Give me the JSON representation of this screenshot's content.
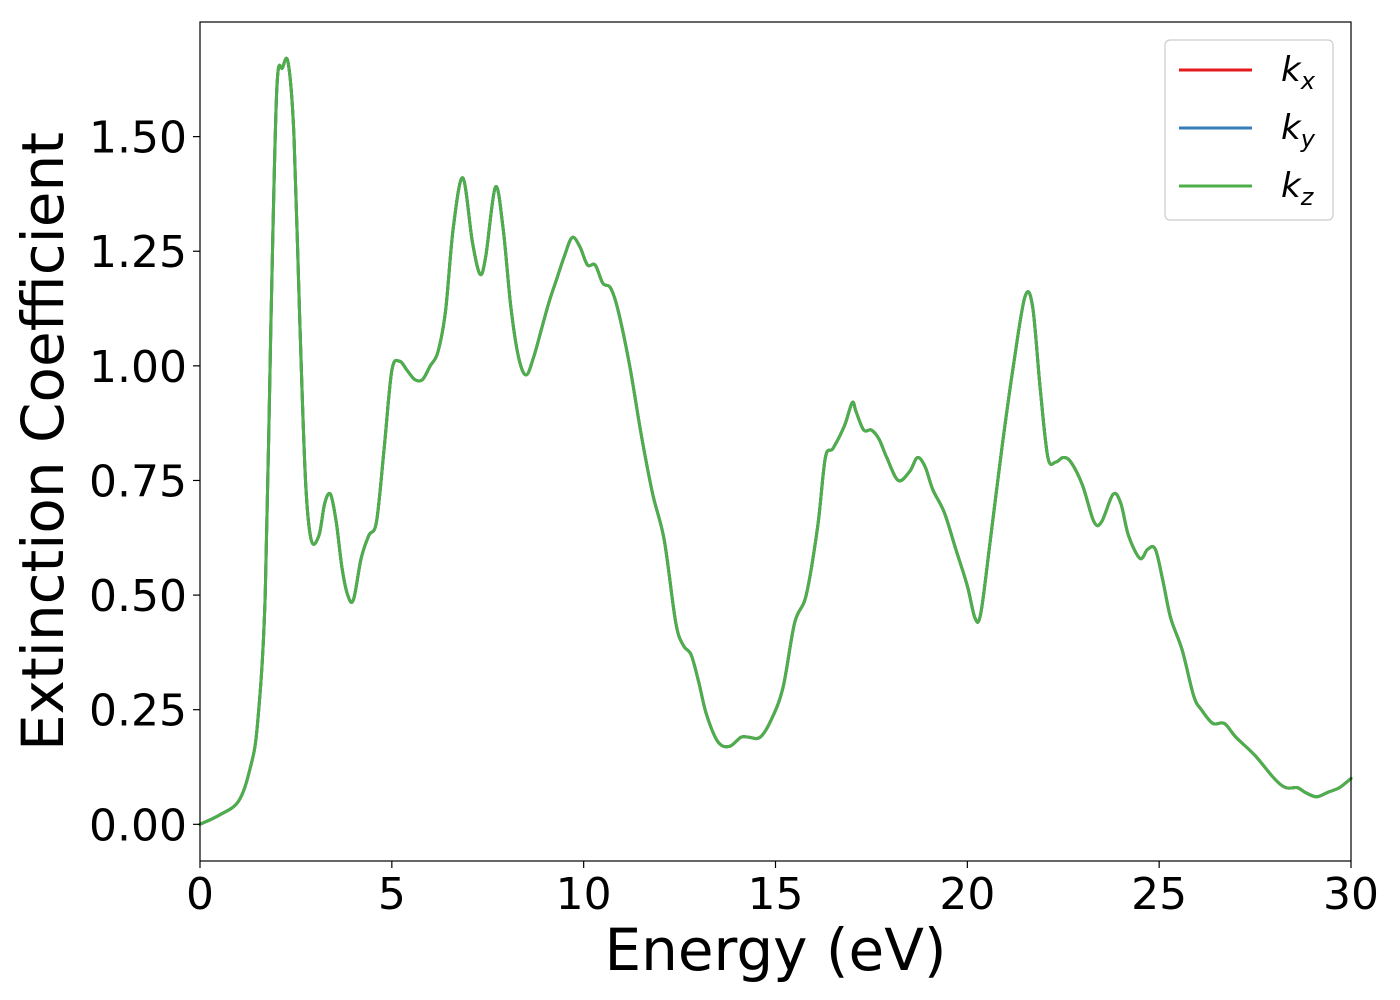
{
  "chart_data": {
    "type": "line",
    "title": "",
    "xlabel": "Energy (eV)",
    "ylabel": "Extinction Coefficient",
    "xlim": [
      0,
      30
    ],
    "ylim": [
      -0.08,
      1.75
    ],
    "xticks": [
      0,
      5,
      10,
      15,
      20,
      25,
      30
    ],
    "xtick_labels": [
      "0",
      "5",
      "10",
      "15",
      "20",
      "25",
      "30"
    ],
    "yticks": [
      0,
      0.25,
      0.5,
      0.75,
      1.0,
      1.25,
      1.5
    ],
    "ytick_labels": [
      "0.00",
      "0.25",
      "0.50",
      "0.75",
      "1.00",
      "1.25",
      "1.50"
    ],
    "grid": false,
    "legend_position": "top-right",
    "x": [
      0,
      0.5,
      1.0,
      1.3,
      1.5,
      1.7,
      1.85,
      2.0,
      2.15,
      2.3,
      2.45,
      2.6,
      2.75,
      2.9,
      3.1,
      3.25,
      3.4,
      3.55,
      3.7,
      3.85,
      4.0,
      4.2,
      4.4,
      4.6,
      4.8,
      5.0,
      5.2,
      5.4,
      5.6,
      5.8,
      6.0,
      6.2,
      6.4,
      6.6,
      6.85,
      7.1,
      7.3,
      7.45,
      7.7,
      7.9,
      8.1,
      8.3,
      8.5,
      8.7,
      8.9,
      9.1,
      9.3,
      9.5,
      9.7,
      9.9,
      10.1,
      10.3,
      10.5,
      10.7,
      10.9,
      11.2,
      11.5,
      11.8,
      12.1,
      12.4,
      12.6,
      12.8,
      13.0,
      13.2,
      13.5,
      13.8,
      14.1,
      14.3,
      14.6,
      14.9,
      15.2,
      15.5,
      15.8,
      16.1,
      16.3,
      16.5,
      16.8,
      17.0,
      17.1,
      17.3,
      17.5,
      17.7,
      17.9,
      18.2,
      18.5,
      18.7,
      18.9,
      19.1,
      19.4,
      19.7,
      20.0,
      20.2,
      20.35,
      20.6,
      20.9,
      21.2,
      21.5,
      21.7,
      21.9,
      22.1,
      22.3,
      22.5,
      22.7,
      23.0,
      23.3,
      23.5,
      23.8,
      24.0,
      24.2,
      24.5,
      24.7,
      24.9,
      25.1,
      25.3,
      25.6,
      25.9,
      26.1,
      26.4,
      26.7,
      27.0,
      27.5,
      28.0,
      28.3,
      28.6,
      28.8,
      29.1,
      29.4,
      29.7,
      30.0
    ],
    "series": [
      {
        "name": "k_x",
        "label_base": "k",
        "label_sub": "x",
        "color": "#e41a1c",
        "values": [
          0.0,
          0.02,
          0.05,
          0.12,
          0.22,
          0.5,
          1.1,
          1.6,
          1.65,
          1.66,
          1.5,
          1.1,
          0.75,
          0.62,
          0.63,
          0.7,
          0.72,
          0.66,
          0.56,
          0.5,
          0.49,
          0.58,
          0.63,
          0.66,
          0.82,
          0.99,
          1.01,
          0.99,
          0.97,
          0.97,
          1.0,
          1.03,
          1.12,
          1.3,
          1.41,
          1.27,
          1.2,
          1.24,
          1.39,
          1.3,
          1.13,
          1.02,
          0.98,
          1.02,
          1.08,
          1.14,
          1.19,
          1.24,
          1.28,
          1.26,
          1.22,
          1.22,
          1.18,
          1.17,
          1.12,
          1.0,
          0.85,
          0.72,
          0.62,
          0.44,
          0.39,
          0.37,
          0.31,
          0.24,
          0.18,
          0.17,
          0.19,
          0.19,
          0.19,
          0.23,
          0.3,
          0.44,
          0.5,
          0.65,
          0.8,
          0.82,
          0.87,
          0.92,
          0.9,
          0.86,
          0.86,
          0.84,
          0.8,
          0.75,
          0.77,
          0.8,
          0.78,
          0.73,
          0.68,
          0.6,
          0.52,
          0.45,
          0.46,
          0.62,
          0.82,
          1.0,
          1.15,
          1.13,
          0.95,
          0.8,
          0.79,
          0.8,
          0.79,
          0.74,
          0.66,
          0.66,
          0.72,
          0.7,
          0.63,
          0.58,
          0.6,
          0.6,
          0.53,
          0.45,
          0.38,
          0.28,
          0.25,
          0.22,
          0.22,
          0.19,
          0.15,
          0.1,
          0.08,
          0.08,
          0.07,
          0.06,
          0.07,
          0.08,
          0.1
        ]
      },
      {
        "name": "k_y",
        "label_base": "k",
        "label_sub": "y",
        "color": "#377eb8",
        "values": [
          0.0,
          0.02,
          0.05,
          0.12,
          0.22,
          0.5,
          1.1,
          1.6,
          1.65,
          1.66,
          1.5,
          1.1,
          0.75,
          0.62,
          0.63,
          0.7,
          0.72,
          0.66,
          0.56,
          0.5,
          0.49,
          0.58,
          0.63,
          0.66,
          0.82,
          0.99,
          1.01,
          0.99,
          0.97,
          0.97,
          1.0,
          1.03,
          1.12,
          1.3,
          1.41,
          1.27,
          1.2,
          1.24,
          1.39,
          1.3,
          1.13,
          1.02,
          0.98,
          1.02,
          1.08,
          1.14,
          1.19,
          1.24,
          1.28,
          1.26,
          1.22,
          1.22,
          1.18,
          1.17,
          1.12,
          1.0,
          0.85,
          0.72,
          0.62,
          0.44,
          0.39,
          0.37,
          0.31,
          0.24,
          0.18,
          0.17,
          0.19,
          0.19,
          0.19,
          0.23,
          0.3,
          0.44,
          0.5,
          0.65,
          0.8,
          0.82,
          0.87,
          0.92,
          0.9,
          0.86,
          0.86,
          0.84,
          0.8,
          0.75,
          0.77,
          0.8,
          0.78,
          0.73,
          0.68,
          0.6,
          0.52,
          0.45,
          0.46,
          0.62,
          0.82,
          1.0,
          1.15,
          1.13,
          0.95,
          0.8,
          0.79,
          0.8,
          0.79,
          0.74,
          0.66,
          0.66,
          0.72,
          0.7,
          0.63,
          0.58,
          0.6,
          0.6,
          0.53,
          0.45,
          0.38,
          0.28,
          0.25,
          0.22,
          0.22,
          0.19,
          0.15,
          0.1,
          0.08,
          0.08,
          0.07,
          0.06,
          0.07,
          0.08,
          0.1
        ]
      },
      {
        "name": "k_z",
        "label_base": "k",
        "label_sub": "z",
        "color": "#4daf4a",
        "values": [
          0.0,
          0.02,
          0.05,
          0.12,
          0.22,
          0.5,
          1.1,
          1.6,
          1.65,
          1.66,
          1.5,
          1.1,
          0.75,
          0.62,
          0.63,
          0.7,
          0.72,
          0.66,
          0.56,
          0.5,
          0.49,
          0.58,
          0.63,
          0.66,
          0.82,
          0.99,
          1.01,
          0.99,
          0.97,
          0.97,
          1.0,
          1.03,
          1.12,
          1.3,
          1.41,
          1.27,
          1.2,
          1.24,
          1.39,
          1.3,
          1.13,
          1.02,
          0.98,
          1.02,
          1.08,
          1.14,
          1.19,
          1.24,
          1.28,
          1.26,
          1.22,
          1.22,
          1.18,
          1.17,
          1.12,
          1.0,
          0.85,
          0.72,
          0.62,
          0.44,
          0.39,
          0.37,
          0.31,
          0.24,
          0.18,
          0.17,
          0.19,
          0.19,
          0.19,
          0.23,
          0.3,
          0.44,
          0.5,
          0.65,
          0.8,
          0.82,
          0.87,
          0.92,
          0.9,
          0.86,
          0.86,
          0.84,
          0.8,
          0.75,
          0.77,
          0.8,
          0.78,
          0.73,
          0.68,
          0.6,
          0.52,
          0.45,
          0.46,
          0.62,
          0.82,
          1.0,
          1.15,
          1.13,
          0.95,
          0.8,
          0.79,
          0.8,
          0.79,
          0.74,
          0.66,
          0.66,
          0.72,
          0.7,
          0.63,
          0.58,
          0.6,
          0.6,
          0.53,
          0.45,
          0.38,
          0.28,
          0.25,
          0.22,
          0.22,
          0.19,
          0.15,
          0.1,
          0.08,
          0.08,
          0.07,
          0.06,
          0.07,
          0.08,
          0.1
        ]
      }
    ]
  }
}
